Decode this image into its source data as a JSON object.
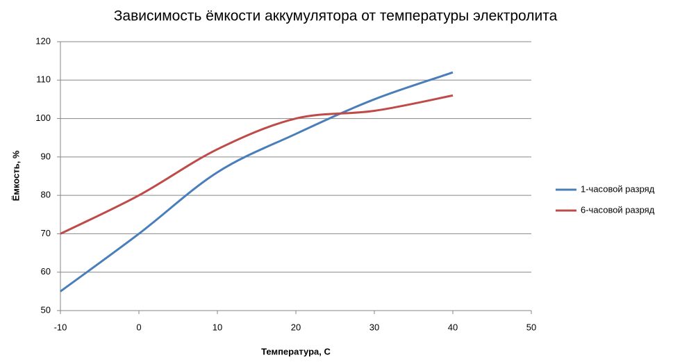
{
  "chart_data": {
    "type": "line",
    "title": "Зависимость ёмкости аккумулятора от температуры электролита",
    "x_label": "Температура, C",
    "y_label": "Ёмкость, %",
    "x": [
      -10,
      0,
      10,
      20,
      30,
      40
    ],
    "series": [
      {
        "name": "1-часовой разряд",
        "color": "#4a7ebb",
        "values": [
          55,
          70,
          86,
          96,
          105,
          112
        ]
      },
      {
        "name": "6-часовой разряд",
        "color": "#be4b48",
        "values": [
          70,
          80,
          92,
          100,
          102,
          106
        ]
      }
    ],
    "xlim": [
      -10,
      50
    ],
    "xticks": [
      -10,
      0,
      10,
      20,
      30,
      40,
      50
    ],
    "ylim": [
      50,
      120
    ],
    "yticks": [
      50,
      60,
      70,
      80,
      90,
      100,
      110,
      120
    ],
    "grid": true,
    "smooth": true,
    "legend": "right"
  }
}
